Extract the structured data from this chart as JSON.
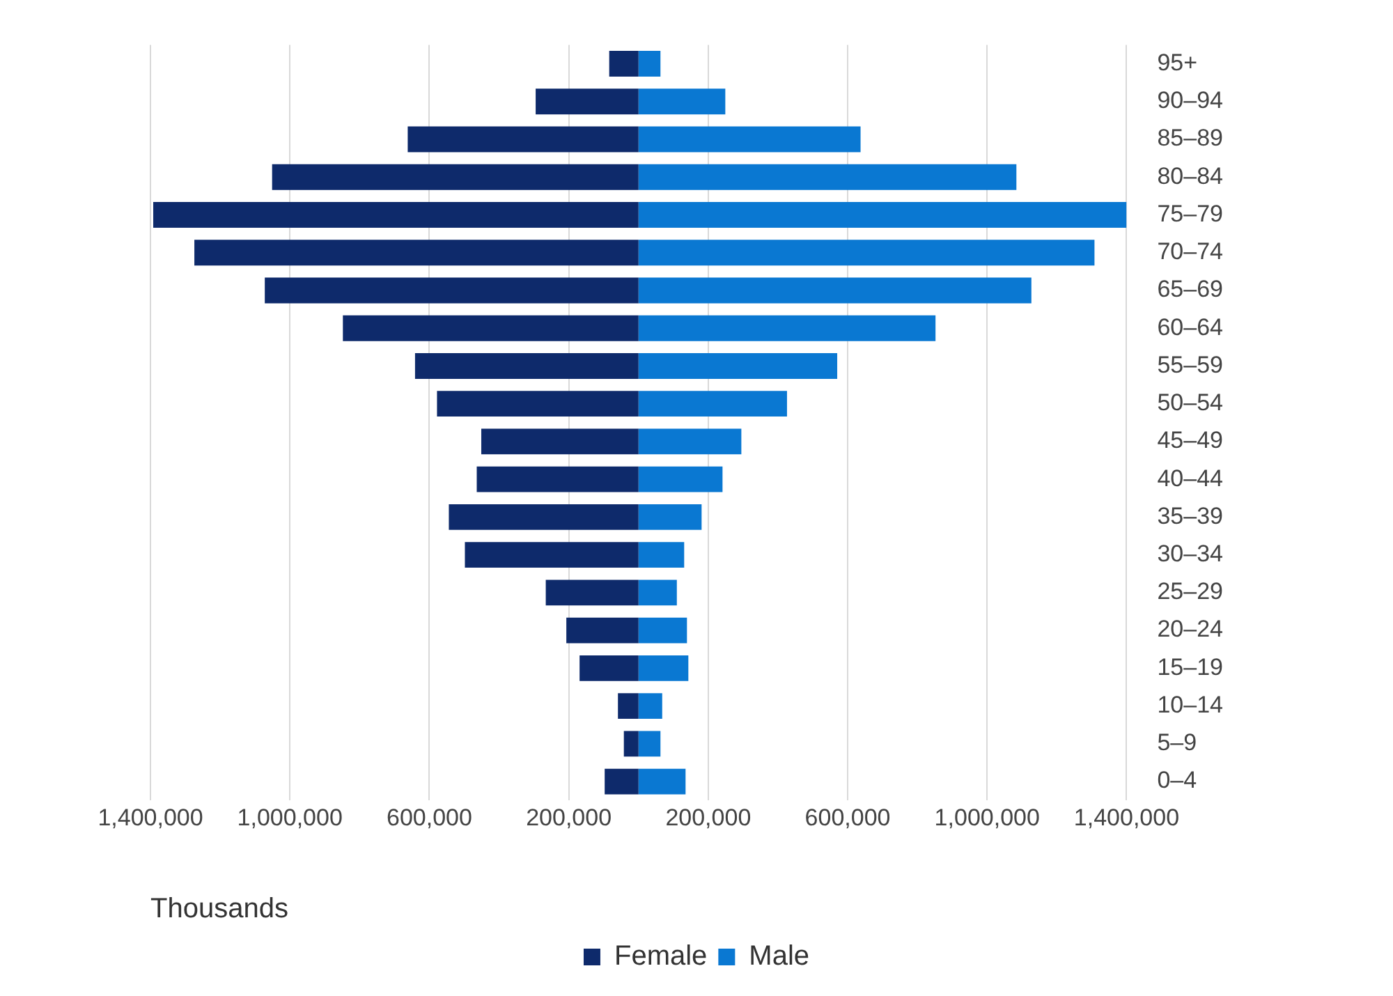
{
  "chart_data": {
    "type": "bar",
    "orientation": "horizontal",
    "stacked": true,
    "xlabel": "Thousands",
    "categories": [
      "95+",
      "90–94",
      "85–89",
      "80–84",
      "75–79",
      "70–74",
      "65–69",
      "60–64",
      "55–59",
      "50–54",
      "45–49",
      "40–44",
      "35–39",
      "30–34",
      "25–29",
      "20–24",
      "15–19",
      "10–14",
      "5–9",
      "0–4"
    ],
    "series": [
      {
        "name": "Female",
        "color": "#0e2a6b",
        "values": [
          -84000,
          -295000,
          -662000,
          -1051000,
          -1392000,
          -1274000,
          -1072000,
          -848000,
          -641000,
          -578000,
          -451000,
          -464000,
          -544000,
          -498000,
          -266000,
          -207000,
          -169000,
          -59000,
          -42000,
          -97000
        ]
      },
      {
        "name": "Male",
        "color": "#0a78d2",
        "values": [
          63000,
          249000,
          637000,
          1084000,
          1400000,
          1308000,
          1127000,
          852000,
          570000,
          426000,
          295000,
          241000,
          181000,
          131000,
          110000,
          139000,
          143000,
          68000,
          63000,
          135000
        ]
      }
    ],
    "xlim": [
      -1400000,
      1400000
    ],
    "xticks": [
      {
        "value": -1400000,
        "label": "1,400,000"
      },
      {
        "value": -1000000,
        "label": "1,000,000"
      },
      {
        "value": -600000,
        "label": "600,000"
      },
      {
        "value": -200000,
        "label": "200,000"
      },
      {
        "value": 200000,
        "label": "200,000"
      },
      {
        "value": 600000,
        "label": "600,000"
      },
      {
        "value": 1000000,
        "label": "1,000,000"
      },
      {
        "value": 1400000,
        "label": "1,400,000"
      }
    ],
    "grid": "x",
    "legend": "bottom"
  }
}
